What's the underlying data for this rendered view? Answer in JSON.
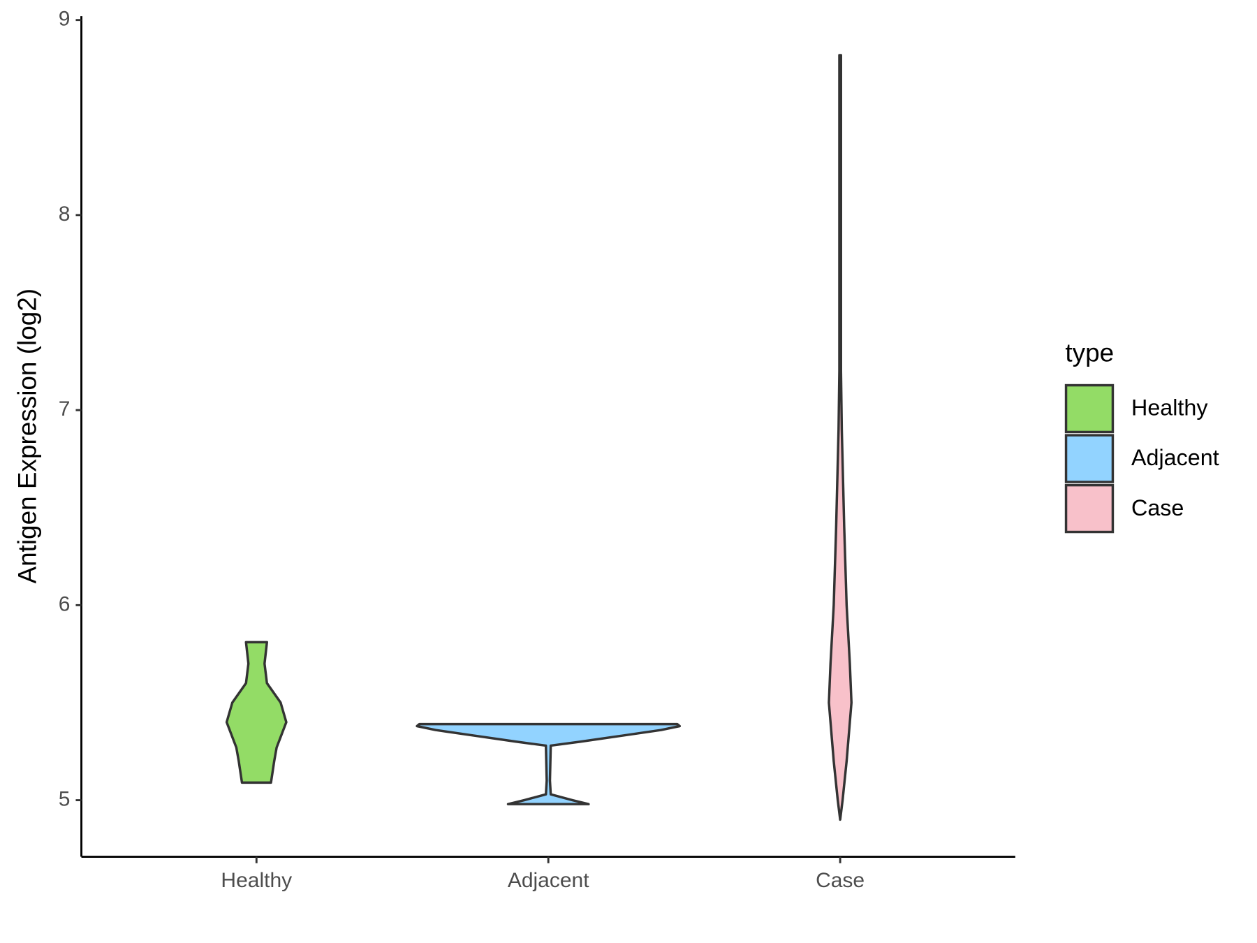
{
  "chart_data": {
    "type": "violin",
    "y_label": "Antigen Expression (log2)",
    "categories": [
      "Healthy",
      "Adjacent",
      "Case"
    ],
    "ylim": [
      4.71,
      9.02
    ],
    "yticks": [
      5,
      6,
      7,
      8,
      9
    ],
    "legend_title": "type",
    "legend_position": "right",
    "series": [
      {
        "name": "Healthy",
        "color": "#93dc66",
        "y": [
          5.09,
          5.2,
          5.27,
          5.4,
          5.5,
          5.6,
          5.7,
          5.81
        ],
        "density": [
          18,
          22,
          25,
          37,
          30,
          13,
          10,
          13
        ]
      },
      {
        "name": "Adjacent",
        "color": "#92d3ff",
        "y": [
          4.98,
          5.0,
          5.03,
          5.1,
          5.28,
          5.3,
          5.33,
          5.36,
          5.38,
          5.39
        ],
        "density": [
          50,
          30,
          3,
          2,
          3,
          40,
          90,
          140,
          163,
          160
        ]
      },
      {
        "name": "Case",
        "color": "#f8c1ca",
        "y": [
          4.9,
          5.0,
          5.2,
          5.4,
          5.5,
          5.7,
          6.0,
          6.4,
          6.9,
          7.2,
          8.0,
          8.82
        ],
        "density": [
          0,
          3,
          8,
          12,
          14,
          12,
          8,
          5,
          2,
          1,
          1,
          1
        ]
      }
    ]
  }
}
